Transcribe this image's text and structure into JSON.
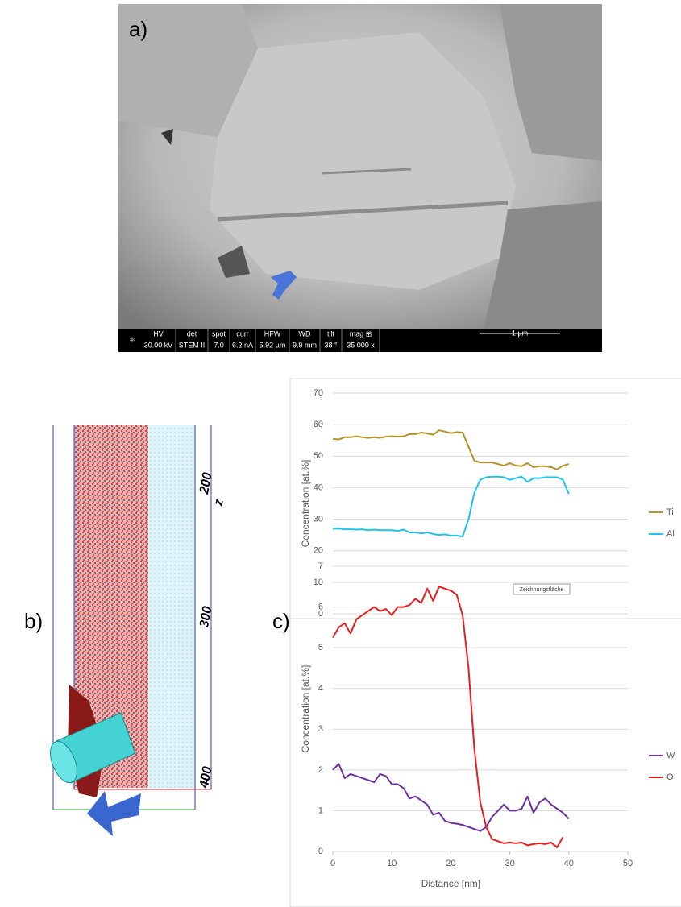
{
  "panel_labels": [
    "a)",
    "b)",
    "c)"
  ],
  "sem_bar": {
    "fields": [
      [
        "HV",
        "30.00 kV"
      ],
      [
        "det",
        "STEM II"
      ],
      [
        "spot",
        "7.0"
      ],
      [
        "curr",
        "6.2 nA"
      ],
      [
        "HFW",
        "5.92 µm"
      ],
      [
        "WD",
        "9.9 mm"
      ],
      [
        "tilt",
        "38 °"
      ],
      [
        "mag ⊞",
        "35 000 x"
      ]
    ],
    "scale": "1 µm"
  },
  "apt": {
    "ticks": [
      "200",
      "300",
      "400"
    ],
    "axis": "z"
  },
  "chart_data": [
    {
      "type": "line",
      "ylabel": "Concentration [at.%]",
      "annotation": "Zeichnungsfläche",
      "x": [
        0,
        1,
        2,
        3,
        4,
        5,
        6,
        7,
        8,
        9,
        10,
        11,
        12,
        13,
        14,
        15,
        16,
        17,
        18,
        19,
        20,
        21,
        22,
        23,
        24,
        25,
        26,
        27,
        28,
        29,
        30,
        31,
        32,
        33,
        34,
        35,
        36,
        37,
        38,
        39,
        40
      ],
      "series": [
        {
          "name": "Ti",
          "color": "#b8912a",
          "values": [
            55.5,
            55.3,
            56,
            56,
            56.3,
            56,
            55.8,
            56,
            55.8,
            56.2,
            56.3,
            56.2,
            56.3,
            57,
            57,
            57.5,
            57.2,
            56.8,
            58.2,
            57.8,
            57.3,
            57.6,
            57.5,
            53,
            48.5,
            48,
            48,
            48,
            47.5,
            47,
            47.8,
            47,
            46.8,
            47.8,
            46.5,
            46.8,
            46.8,
            46.5,
            45.8,
            47,
            47.5
          ]
        },
        {
          "name": "Al",
          "color": "#1fc3ea",
          "values": [
            27,
            27,
            26.8,
            26.8,
            26.7,
            26.8,
            26.5,
            26.7,
            26.5,
            26.5,
            26.5,
            26.3,
            26.7,
            25.8,
            25.8,
            25.5,
            25.8,
            25.3,
            25,
            25.2,
            24.8,
            24.8,
            24.5,
            30,
            38.5,
            42.5,
            43.3,
            43.5,
            43.5,
            43.3,
            42.5,
            43,
            43.5,
            41.8,
            43,
            43,
            43.3,
            43.3,
            43.3,
            42.5,
            38
          ]
        }
      ],
      "xlim": [
        0,
        50
      ],
      "ylim": [
        0,
        70
      ],
      "yticks": [
        0,
        10,
        20,
        30,
        40,
        50,
        60,
        70
      ],
      "grid": true
    },
    {
      "type": "line",
      "ylabel": "Concentration [at.%]",
      "xlabel": "Distance [nm]",
      "x": [
        0,
        1,
        2,
        3,
        4,
        5,
        6,
        7,
        8,
        9,
        10,
        11,
        12,
        13,
        14,
        15,
        16,
        17,
        18,
        19,
        20,
        21,
        22,
        23,
        24,
        25,
        26,
        27,
        28,
        29,
        30,
        31,
        32,
        33,
        34,
        35,
        36,
        37,
        38,
        39,
        40
      ],
      "series": [
        {
          "name": "W",
          "color": "#7030a0",
          "values": [
            2.0,
            2.15,
            1.8,
            1.9,
            1.85,
            1.8,
            1.75,
            1.7,
            1.9,
            1.85,
            1.65,
            1.65,
            1.55,
            1.3,
            1.35,
            1.25,
            1.15,
            0.9,
            0.95,
            0.75,
            0.7,
            0.68,
            0.65,
            0.6,
            0.55,
            0.5,
            0.6,
            0.85,
            1.0,
            1.15,
            1.0,
            1.0,
            1.05,
            1.35,
            0.95,
            1.2,
            1.3,
            1.15,
            1.05,
            0.95,
            0.8
          ]
        },
        {
          "name": "O",
          "color": "#e81e1e",
          "values": [
            5.25,
            5.5,
            5.6,
            5.35,
            5.7,
            5.8,
            5.9,
            6.0,
            5.9,
            5.95,
            5.8,
            6.0,
            6.0,
            6.05,
            6.2,
            6.1,
            6.45,
            6.15,
            6.5,
            6.45,
            6.4,
            6.3,
            5.8,
            4.5,
            2.5,
            1.2,
            0.6,
            0.3,
            0.25,
            0.2,
            0.22,
            0.2,
            0.22,
            0.15,
            0.18,
            0.2,
            0.18,
            0.22,
            0.1,
            0.35,
            null
          ]
        }
      ],
      "xlim": [
        0,
        50
      ],
      "xticks": [
        0,
        10,
        20,
        30,
        40,
        50
      ],
      "ylim": [
        0,
        7
      ],
      "yticks": [
        0,
        1,
        2,
        3,
        4,
        5,
        6,
        7
      ],
      "grid": true
    }
  ]
}
